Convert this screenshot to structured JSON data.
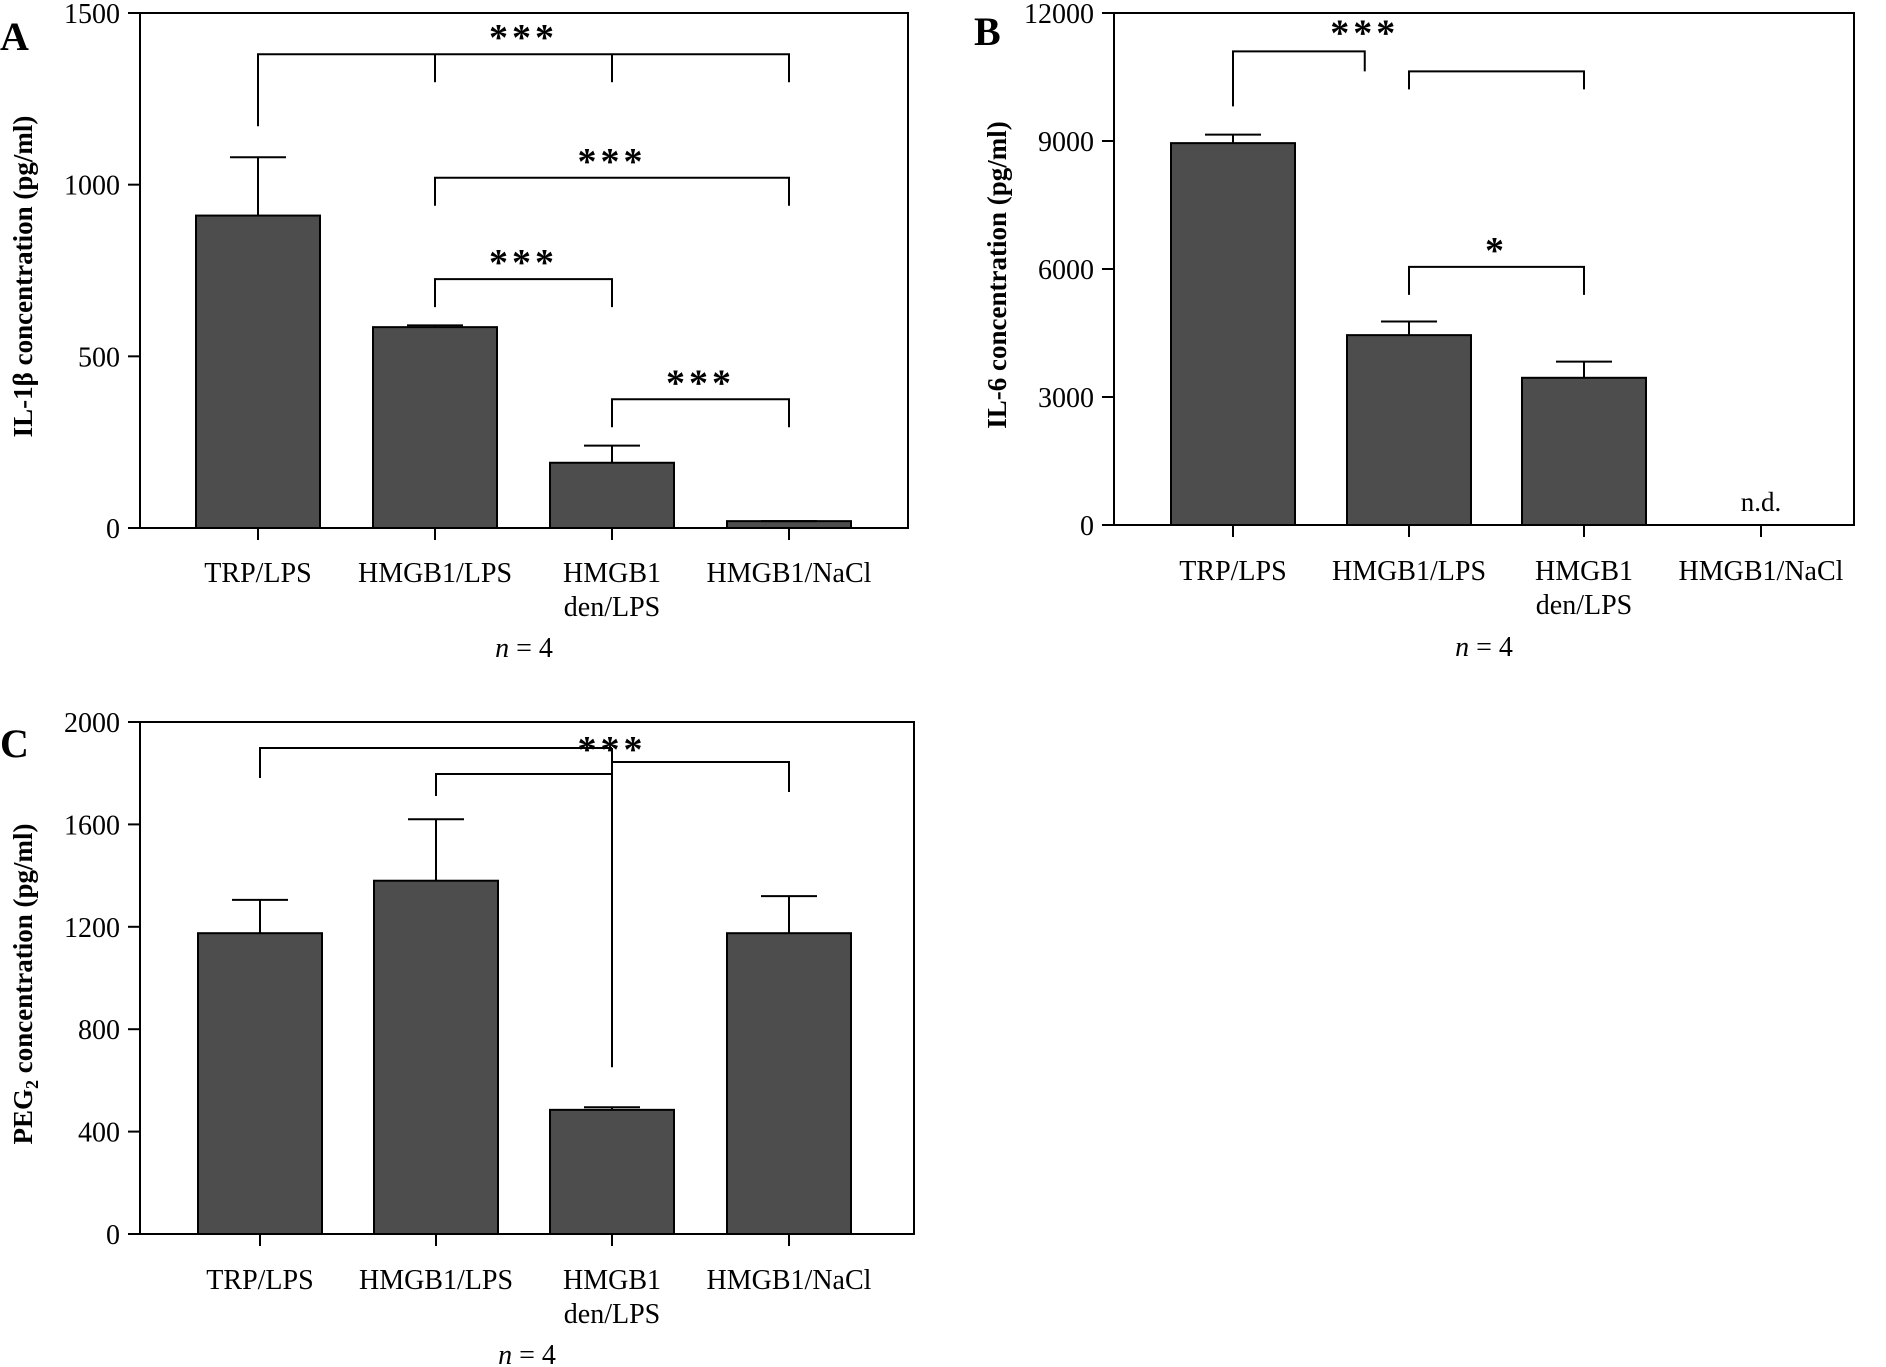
{
  "chart_data": [
    {
      "panel": "A",
      "type": "bar",
      "ylabel": "IL-1β concentration (pg/ml)",
      "ylim": [
        0,
        1500
      ],
      "yticks": [
        0,
        500,
        1000,
        1500
      ],
      "categories": [
        [
          "TRP/LPS"
        ],
        [
          "HMGB1/LPS"
        ],
        [
          "HMGB1",
          "den/LPS"
        ],
        [
          "HMGB1/NaCl"
        ]
      ],
      "values": [
        910,
        585,
        190,
        20
      ],
      "errors": [
        170,
        5,
        50,
        0
      ],
      "n_label": "n = 4",
      "annotations": [
        {
          "type": "multi",
          "label": "***",
          "from": 0,
          "to": [
            1,
            2,
            3
          ],
          "y": 1380
        },
        {
          "type": "simple",
          "label": "***",
          "from": 1,
          "to": 3,
          "y": 1020
        },
        {
          "type": "simple",
          "label": "***",
          "from": 1,
          "to": 2,
          "y": 725
        },
        {
          "type": "simple",
          "label": "***",
          "from": 2,
          "to": 3,
          "y": 375
        }
      ]
    },
    {
      "panel": "B",
      "type": "bar",
      "ylabel": "IL-6 concentration (pg/ml)",
      "ylim": [
        0,
        12000
      ],
      "yticks": [
        0,
        3000,
        6000,
        9000,
        12000
      ],
      "categories": [
        [
          "TRP/LPS"
        ],
        [
          "HMGB1/LPS"
        ],
        [
          "HMGB1",
          "den/LPS"
        ],
        [
          "HMGB1/NaCl"
        ]
      ],
      "values": [
        8950,
        4450,
        3450,
        0
      ],
      "errors": [
        200,
        320,
        380,
        0
      ],
      "not_detected_label": "n.d.",
      "n_label": "n = 4",
      "annotations": [
        {
          "type": "group",
          "label": "***",
          "from": 0,
          "to": [
            1,
            2
          ],
          "y": 11100
        },
        {
          "type": "simple",
          "label": "*",
          "from": 1,
          "to": 2,
          "y": 6050
        }
      ]
    },
    {
      "panel": "C",
      "type": "bar",
      "ylabel": "PEG",
      "ylabel_subscript": "2",
      "ylabel_suffix": " concentration (pg/ml)",
      "ylim": [
        0,
        2000
      ],
      "yticks": [
        0,
        400,
        800,
        1200,
        1600,
        2000
      ],
      "categories": [
        [
          "TRP/LPS"
        ],
        [
          "HMGB1/LPS"
        ],
        [
          "HMGB1",
          "den/LPS"
        ],
        [
          "HMGB1/NaCl"
        ]
      ],
      "values": [
        1175,
        1380,
        485,
        1175
      ],
      "errors": [
        130,
        240,
        10,
        145
      ],
      "n_label": "n = 4",
      "annotations": [
        {
          "type": "fan",
          "label": "***",
          "target": 2,
          "sources": [
            0,
            1,
            3
          ]
        }
      ]
    }
  ]
}
